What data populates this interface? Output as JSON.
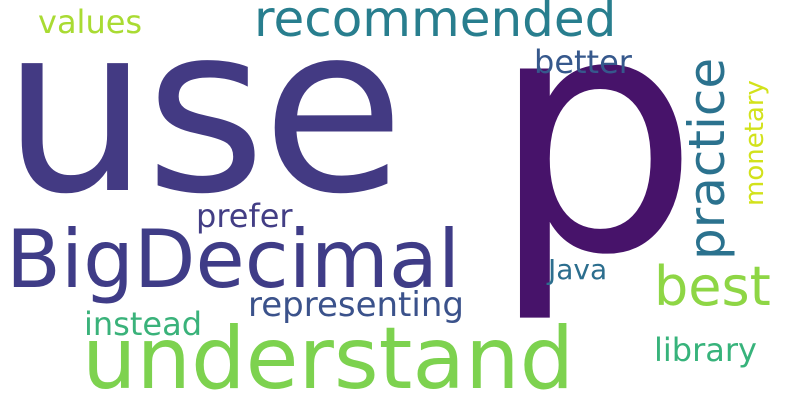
{
  "wordcloud": {
    "background": "#ffffff",
    "words": {
      "use": {
        "text": "use",
        "color": "#433a83"
      },
      "p": {
        "text": "p",
        "color": "#47136a"
      },
      "recommended": {
        "text": "recommended",
        "color": "#287e8e"
      },
      "values": {
        "text": "values",
        "color": "#a9db33"
      },
      "bigdecimal": {
        "text": "BigDecimal",
        "color": "#3f3c87"
      },
      "understand": {
        "text": "understand",
        "color": "#7dd24f"
      },
      "practice": {
        "text": "practice",
        "color": "#2b728e"
      },
      "best": {
        "text": "best",
        "color": "#8ed645"
      },
      "better": {
        "text": "better",
        "color": "#36588c"
      },
      "monetary": {
        "text": "monetary",
        "color": "#d2e21b"
      },
      "prefer": {
        "text": "prefer",
        "color": "#433e85"
      },
      "java": {
        "text": "Java",
        "color": "#2c6e8e"
      },
      "representing": {
        "text": "representing",
        "color": "#3b528b"
      },
      "instead": {
        "text": "instead",
        "color": "#3ab27a"
      },
      "library": {
        "text": "library",
        "color": "#37b37b"
      }
    }
  }
}
